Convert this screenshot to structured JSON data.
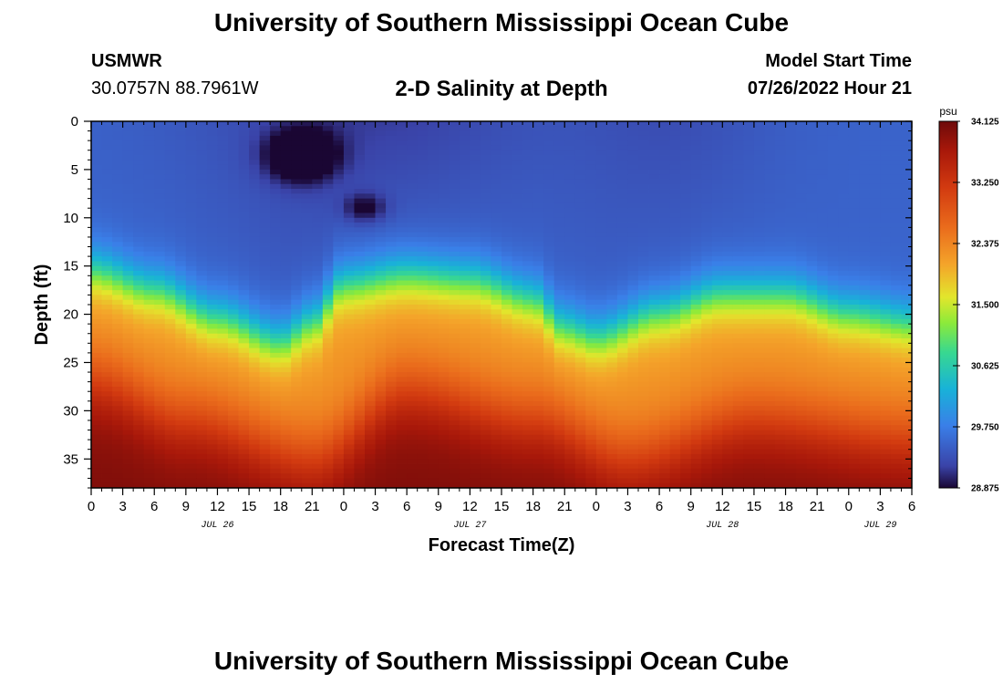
{
  "header": {
    "title": "University of Southern Mississippi Ocean Cube",
    "station": "USMWR",
    "coords": "30.0757N  88.7961W",
    "subtitle": "2-D Salinity at Depth",
    "start_label": "Model Start Time",
    "start_value": "07/26/2022 Hour 21"
  },
  "footer": {
    "title": "University of Southern Mississippi Ocean Cube"
  },
  "chart_data": {
    "type": "heatmap",
    "title": "2-D Salinity at Depth",
    "xlabel": "Forecast Time(Z)",
    "ylabel": "Depth (ft)",
    "x_hours": [
      0,
      78
    ],
    "x_ticks": [
      "0",
      "3",
      "6",
      "9",
      "12",
      "15",
      "18",
      "21",
      "0",
      "3",
      "6",
      "9",
      "12",
      "15",
      "18",
      "21",
      "0",
      "3",
      "6",
      "9",
      "12",
      "15",
      "18",
      "21",
      "0",
      "3",
      "6"
    ],
    "date_labels": [
      {
        "label": "JUL 26",
        "hour": 12
      },
      {
        "label": "JUL 27",
        "hour": 36
      },
      {
        "label": "JUL 28",
        "hour": 60
      },
      {
        "label": "JUL 29",
        "hour": 75
      }
    ],
    "ylim": [
      0,
      38
    ],
    "y_ticks": [
      0,
      5,
      10,
      15,
      20,
      25,
      30,
      35
    ],
    "colorbar": {
      "unit": "psu",
      "min": 28.875,
      "max": 34.125,
      "ticks": [
        "34.125",
        "33.250",
        "32.375",
        "31.500",
        "30.625",
        "29.750",
        "28.875"
      ]
    },
    "surface_salinity_psu": 29.5,
    "fresh_anomaly": {
      "hour": 20,
      "depth_ft": 3.5,
      "min_psu": 28.875
    },
    "bottom_salinity_psu": 34.0,
    "halocline_depth_ft": [
      {
        "hour": 0,
        "depth": 15.5
      },
      {
        "hour": 6,
        "depth": 17.5
      },
      {
        "hour": 12,
        "depth": 20.5
      },
      {
        "hour": 18,
        "depth": 23
      },
      {
        "hour": 21,
        "depth": 21
      },
      {
        "hour": 24,
        "depth": 17
      },
      {
        "hour": 30,
        "depth": 16
      },
      {
        "hour": 36,
        "depth": 16.5
      },
      {
        "hour": 42,
        "depth": 18.5
      },
      {
        "hour": 45,
        "depth": 21.5
      },
      {
        "hour": 48,
        "depth": 22.5
      },
      {
        "hour": 54,
        "depth": 20
      },
      {
        "hour": 60,
        "depth": 18
      },
      {
        "hour": 66,
        "depth": 18
      },
      {
        "hour": 72,
        "depth": 20
      },
      {
        "hour": 78,
        "depth": 21
      }
    ],
    "bottom_salty_core_depth_ft": [
      {
        "hour": 0,
        "depth": 27
      },
      {
        "hour": 9,
        "depth": 31
      },
      {
        "hour": 21,
        "depth": 35
      },
      {
        "hour": 30,
        "depth": 28
      },
      {
        "hour": 42,
        "depth": 31
      },
      {
        "hour": 51,
        "depth": 35
      },
      {
        "hour": 63,
        "depth": 31
      },
      {
        "hour": 78,
        "depth": 33
      }
    ]
  }
}
